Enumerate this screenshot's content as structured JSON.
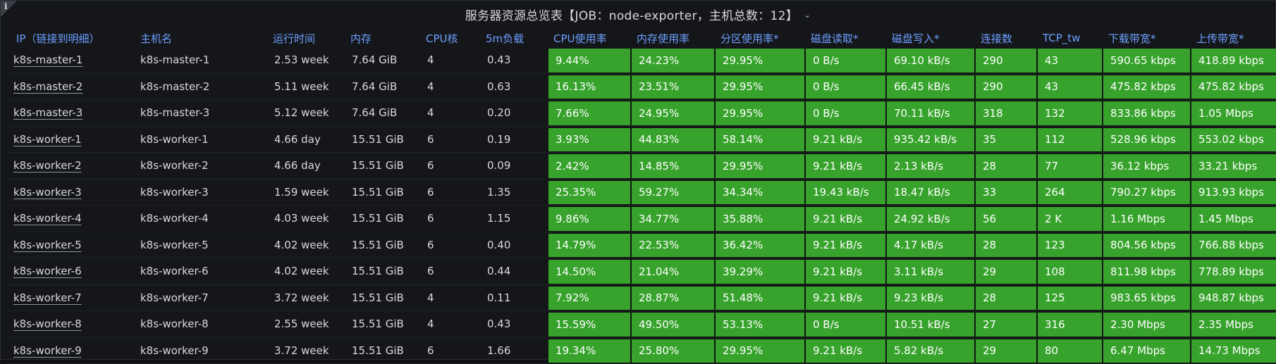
{
  "panel": {
    "title": "服务器资源总览表【JOB：node-exporter，主机总数：12】",
    "chevron_icon": "chevron-down-icon",
    "info_icon": "info-icon",
    "info_glyph": "i"
  },
  "colors": {
    "background": "#141619",
    "header_text": "#6e9fff",
    "cell_green": "#37a32c"
  },
  "table": {
    "columns": [
      "IP（链接到明细）",
      "主机名",
      "运行时间",
      "内存",
      "CPU核",
      "5m负载",
      "CPU使用率",
      "内存使用率",
      "分区使用率*",
      "磁盘读取*",
      "磁盘写入*",
      "连接数",
      "TCP_tw",
      "下载带宽*",
      "上传带宽*"
    ],
    "rows": [
      [
        "k8s-master-1",
        "k8s-master-1",
        "2.53 week",
        "7.64 GiB",
        "4",
        "0.43",
        "9.44%",
        "24.23%",
        "29.95%",
        "0 B/s",
        "69.10 kB/s",
        "290",
        "43",
        "590.65 kbps",
        "418.89 kbps"
      ],
      [
        "k8s-master-2",
        "k8s-master-2",
        "5.11 week",
        "7.64 GiB",
        "4",
        "0.63",
        "16.13%",
        "23.51%",
        "29.95%",
        "0 B/s",
        "66.45 kB/s",
        "290",
        "43",
        "475.82 kbps",
        "475.82 kbps"
      ],
      [
        "k8s-master-3",
        "k8s-master-3",
        "5.12 week",
        "7.64 GiB",
        "4",
        "0.20",
        "7.66%",
        "24.95%",
        "29.95%",
        "0 B/s",
        "70.11 kB/s",
        "318",
        "132",
        "833.86 kbps",
        "1.05 Mbps"
      ],
      [
        "k8s-worker-1",
        "k8s-worker-1",
        "4.66 day",
        "15.51 GiB",
        "6",
        "0.19",
        "3.93%",
        "44.83%",
        "58.14%",
        "9.21 kB/s",
        "935.42 kB/s",
        "35",
        "112",
        "528.96 kbps",
        "553.02 kbps"
      ],
      [
        "k8s-worker-2",
        "k8s-worker-2",
        "4.66 day",
        "15.51 GiB",
        "6",
        "0.09",
        "2.42%",
        "14.85%",
        "29.95%",
        "9.21 kB/s",
        "2.13 kB/s",
        "28",
        "77",
        "36.12 kbps",
        "33.21 kbps"
      ],
      [
        "k8s-worker-3",
        "k8s-worker-3",
        "1.59 week",
        "15.51 GiB",
        "6",
        "1.35",
        "25.35%",
        "59.27%",
        "34.34%",
        "19.43 kB/s",
        "18.47 kB/s",
        "33",
        "264",
        "790.27 kbps",
        "913.93 kbps"
      ],
      [
        "k8s-worker-4",
        "k8s-worker-4",
        "4.03 week",
        "15.51 GiB",
        "6",
        "1.15",
        "9.86%",
        "34.77%",
        "35.88%",
        "9.21 kB/s",
        "24.92 kB/s",
        "56",
        "2 K",
        "1.16 Mbps",
        "1.45 Mbps"
      ],
      [
        "k8s-worker-5",
        "k8s-worker-5",
        "4.02 week",
        "15.51 GiB",
        "6",
        "0.40",
        "14.79%",
        "22.53%",
        "36.42%",
        "9.21 kB/s",
        "4.17 kB/s",
        "28",
        "123",
        "804.56 kbps",
        "766.88 kbps"
      ],
      [
        "k8s-worker-6",
        "k8s-worker-6",
        "4.02 week",
        "15.51 GiB",
        "6",
        "0.44",
        "14.50%",
        "21.04%",
        "39.29%",
        "9.21 kB/s",
        "3.11 kB/s",
        "29",
        "108",
        "811.98 kbps",
        "778.89 kbps"
      ],
      [
        "k8s-worker-7",
        "k8s-worker-7",
        "3.72 week",
        "15.51 GiB",
        "4",
        "0.11",
        "7.92%",
        "28.87%",
        "51.48%",
        "9.21 kB/s",
        "9.23 kB/s",
        "28",
        "125",
        "983.65 kbps",
        "948.87 kbps"
      ],
      [
        "k8s-worker-8",
        "k8s-worker-8",
        "2.55 week",
        "15.51 GiB",
        "4",
        "0.43",
        "15.59%",
        "49.50%",
        "53.13%",
        "0 B/s",
        "10.51 kB/s",
        "27",
        "316",
        "2.30 Mbps",
        "2.35 Mbps"
      ],
      [
        "k8s-worker-9",
        "k8s-worker-9",
        "3.72 week",
        "15.51 GiB",
        "6",
        "1.66",
        "19.34%",
        "25.80%",
        "29.95%",
        "9.21 kB/s",
        "5.82 kB/s",
        "29",
        "80",
        "6.47 Mbps",
        "14.73 Mbps"
      ]
    ]
  }
}
